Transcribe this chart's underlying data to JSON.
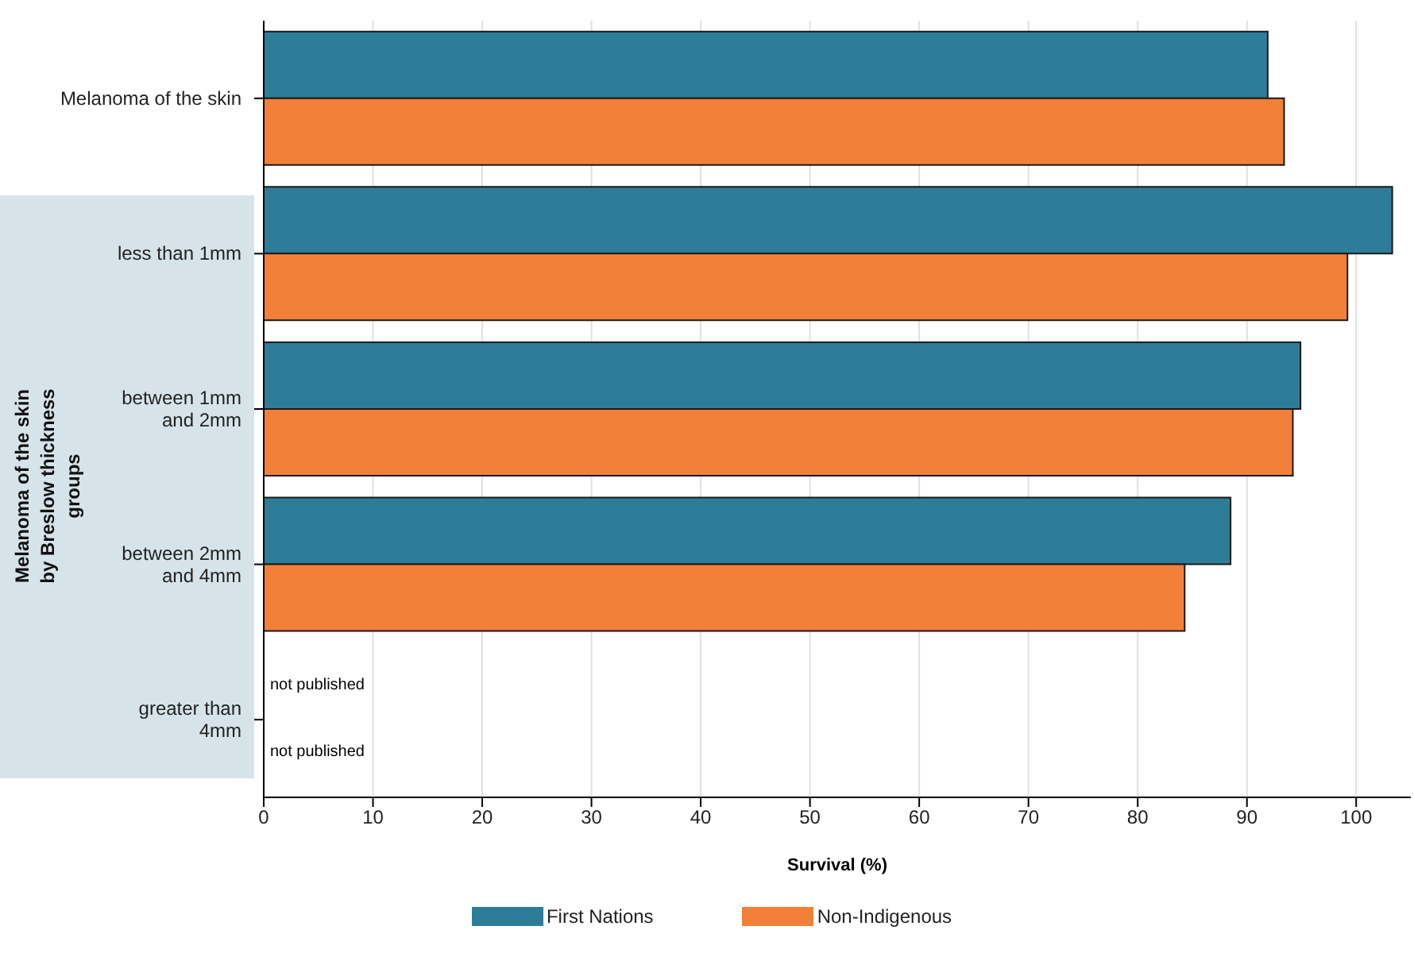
{
  "chart_data": {
    "type": "bar",
    "orientation": "horizontal",
    "xlabel": "Survival (%)",
    "categories": [
      "Melanoma of the skin",
      "less than 1mm",
      "between 1mm and 2mm",
      "between 2mm and 4mm",
      "greater than 4mm"
    ],
    "series": [
      {
        "name": "First Nations",
        "color": "#2e7d98",
        "values": [
          91.9,
          103.3,
          94.9,
          88.5,
          null
        ],
        "value_labels": [
          null,
          null,
          null,
          null,
          "not published"
        ]
      },
      {
        "name": "Non-Indigenous",
        "color": "#f38038",
        "values": [
          93.4,
          99.2,
          94.2,
          84.3,
          null
        ],
        "value_labels": [
          null,
          null,
          null,
          null,
          "not published"
        ]
      }
    ],
    "ylabel": "Melanoma of the skin by Breslow thickness groups",
    "xlim": [
      0,
      105
    ],
    "xticks": [
      0,
      10,
      20,
      30,
      40,
      50,
      60,
      70,
      80,
      90,
      100
    ],
    "grid": "x",
    "legend": "bottom"
  }
}
